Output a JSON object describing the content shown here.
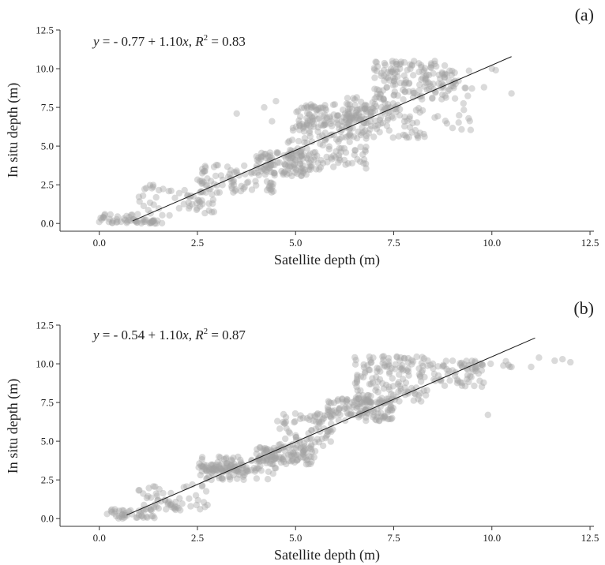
{
  "figure": {
    "point_color": "#a3a3a3",
    "point_opacity": 0.4,
    "line_color": "#1a1a1a",
    "background": "#ffffff"
  },
  "chart_data": [
    {
      "type": "scatter",
      "panel_label": "(a)",
      "equation": {
        "y": "y",
        "rhs": " = - 0.77 + 1.10",
        "x": "x",
        "sep": ", ",
        "r": "R",
        "sup": "2",
        "r2": " = 0.83"
      },
      "xlabel": "Satellite depth (m)",
      "ylabel": "In situ depth (m)",
      "xlim": [
        -1.0,
        12.6
      ],
      "ylim": [
        -0.5,
        12.5
      ],
      "xticks": [
        "0.0",
        "2.5",
        "5.0",
        "7.5",
        "10.0",
        "12.5"
      ],
      "yticks": [
        "0.0",
        "2.5",
        "5.0",
        "7.5",
        "10.0",
        "12.5"
      ],
      "grid": false,
      "regression": {
        "intercept": -0.77,
        "slope": 1.1,
        "r2": 0.83,
        "x_range": [
          0.85,
          10.5
        ]
      },
      "clusters": [
        {
          "x": [
            0.0,
            1.0
          ],
          "y": [
            0.0,
            0.6
          ],
          "n": 30
        },
        {
          "x": [
            0.9,
            1.6
          ],
          "y": [
            0.0,
            0.25
          ],
          "n": 25
        },
        {
          "x": [
            1.0,
            3.0
          ],
          "y": [
            0.4,
            2.6
          ],
          "n": 60
        },
        {
          "x": [
            2.5,
            4.5
          ],
          "y": [
            2.0,
            3.8
          ],
          "n": 80
        },
        {
          "x": [
            4.0,
            5.5
          ],
          "y": [
            3.0,
            4.6
          ],
          "n": 110
        },
        {
          "x": [
            4.8,
            6.8
          ],
          "y": [
            3.5,
            6.2
          ],
          "n": 110
        },
        {
          "x": [
            5.0,
            6.8
          ],
          "y": [
            6.2,
            7.7
          ],
          "n": 120
        },
        {
          "x": [
            6.3,
            8.3
          ],
          "y": [
            5.5,
            8.3
          ],
          "n": 120
        },
        {
          "x": [
            7.0,
            9.0
          ],
          "y": [
            8.0,
            10.5
          ],
          "n": 150
        },
        {
          "x": [
            8.5,
            9.5
          ],
          "y": [
            6.0,
            10.2
          ],
          "n": 30
        }
      ],
      "outliers": [
        [
          4.2,
          7.5
        ],
        [
          4.5,
          7.9
        ],
        [
          3.5,
          7.1
        ],
        [
          4.4,
          6.6
        ],
        [
          10.0,
          10.0
        ],
        [
          10.5,
          8.4
        ],
        [
          9.8,
          8.8
        ],
        [
          10.1,
          9.9
        ],
        [
          0.1,
          0.4
        ],
        [
          0.0,
          0.1
        ]
      ]
    },
    {
      "type": "scatter",
      "panel_label": "(b)",
      "equation": {
        "y": "y",
        "rhs": " = - 0.54 + 1.10",
        "x": "x",
        "sep": ", ",
        "r": "R",
        "sup": "2",
        "r2": " = 0.87"
      },
      "xlabel": "Satellite depth (m)",
      "ylabel": "In situ depth (m)",
      "xlim": [
        -1.0,
        12.6
      ],
      "ylim": [
        -0.5,
        12.5
      ],
      "xticks": [
        "0.0",
        "2.5",
        "5.0",
        "7.5",
        "10.0",
        "12.5"
      ],
      "yticks": [
        "0.0",
        "2.5",
        "5.0",
        "7.5",
        "10.0",
        "12.5"
      ],
      "grid": false,
      "regression": {
        "intercept": -0.54,
        "slope": 1.1,
        "r2": 0.87,
        "x_range": [
          0.7,
          11.1
        ]
      },
      "clusters": [
        {
          "x": [
            0.3,
            1.5
          ],
          "y": [
            0.0,
            0.6
          ],
          "n": 40
        },
        {
          "x": [
            1.0,
            2.8
          ],
          "y": [
            0.5,
            2.2
          ],
          "n": 60
        },
        {
          "x": [
            2.5,
            4.5
          ],
          "y": [
            2.5,
            4.0
          ],
          "n": 90
        },
        {
          "x": [
            2.6,
            3.8
          ],
          "y": [
            3.0,
            3.5
          ],
          "n": 50
        },
        {
          "x": [
            4.0,
            5.5
          ],
          "y": [
            3.5,
            4.6
          ],
          "n": 110
        },
        {
          "x": [
            4.5,
            6.0
          ],
          "y": [
            4.5,
            6.8
          ],
          "n": 80
        },
        {
          "x": [
            5.8,
            7.5
          ],
          "y": [
            6.3,
            7.8
          ],
          "n": 130
        },
        {
          "x": [
            6.5,
            8.5
          ],
          "y": [
            7.5,
            10.5
          ],
          "n": 150
        },
        {
          "x": [
            8.5,
            9.8
          ],
          "y": [
            8.5,
            10.2
          ],
          "n": 50
        },
        {
          "x": [
            9.2,
            10.5
          ],
          "y": [
            9.5,
            10.3
          ],
          "n": 20
        }
      ],
      "outliers": [
        [
          11.2,
          10.4
        ],
        [
          11.6,
          10.2
        ],
        [
          11.8,
          10.3
        ],
        [
          12.0,
          10.1
        ],
        [
          11.0,
          9.8
        ],
        [
          10.5,
          9.8
        ],
        [
          9.9,
          6.7
        ],
        [
          0.3,
          0.5
        ],
        [
          0.2,
          0.3
        ]
      ]
    }
  ]
}
